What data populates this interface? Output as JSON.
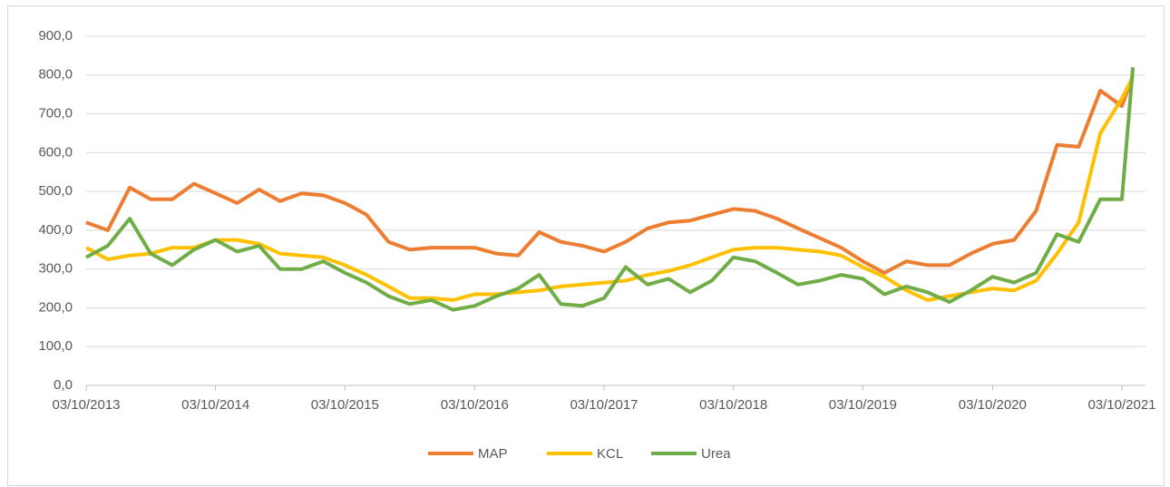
{
  "chart_data": {
    "type": "line",
    "x": [
      "03/10/2013",
      "03/12/2013",
      "03/02/2014",
      "03/04/2014",
      "03/06/2014",
      "03/08/2014",
      "03/10/2014",
      "03/12/2014",
      "03/02/2015",
      "03/04/2015",
      "03/06/2015",
      "03/08/2015",
      "03/10/2015",
      "03/12/2015",
      "03/02/2016",
      "03/04/2016",
      "03/06/2016",
      "03/08/2016",
      "03/10/2016",
      "03/12/2016",
      "03/02/2017",
      "03/04/2017",
      "03/06/2017",
      "03/08/2017",
      "03/10/2017",
      "03/12/2017",
      "03/02/2018",
      "03/04/2018",
      "03/06/2018",
      "03/08/2018",
      "03/10/2018",
      "03/12/2018",
      "03/02/2019",
      "03/04/2019",
      "03/06/2019",
      "03/08/2019",
      "03/10/2019",
      "03/12/2019",
      "03/02/2020",
      "03/04/2020",
      "03/06/2020",
      "03/08/2020",
      "03/10/2020",
      "03/12/2020",
      "03/02/2021",
      "03/04/2021",
      "03/06/2021",
      "03/08/2021",
      "03/10/2021",
      "03/11/2021"
    ],
    "series": [
      {
        "name": "MAP",
        "color": "#ed7d31",
        "values": [
          420,
          400,
          510,
          480,
          480,
          520,
          495,
          470,
          505,
          475,
          495,
          490,
          470,
          440,
          370,
          350,
          355,
          355,
          355,
          340,
          335,
          395,
          370,
          360,
          345,
          370,
          405,
          420,
          425,
          440,
          455,
          450,
          430,
          405,
          380,
          355,
          320,
          290,
          320,
          310,
          310,
          340,
          365,
          375,
          450,
          620,
          615,
          760,
          720,
          800
        ]
      },
      {
        "name": "KCL",
        "color": "#ffc000",
        "values": [
          355,
          325,
          335,
          340,
          355,
          355,
          375,
          375,
          365,
          340,
          335,
          330,
          310,
          285,
          255,
          225,
          225,
          220,
          235,
          235,
          240,
          245,
          255,
          260,
          265,
          270,
          285,
          295,
          310,
          330,
          350,
          355,
          355,
          350,
          345,
          335,
          305,
          280,
          245,
          220,
          230,
          240,
          250,
          245,
          270,
          340,
          420,
          650,
          740,
          795
        ]
      },
      {
        "name": "Urea",
        "color": "#70ad47",
        "values": [
          330,
          360,
          430,
          340,
          310,
          350,
          375,
          345,
          360,
          300,
          300,
          320,
          290,
          265,
          230,
          210,
          220,
          195,
          205,
          230,
          250,
          285,
          210,
          205,
          225,
          305,
          260,
          275,
          240,
          270,
          330,
          320,
          290,
          260,
          270,
          285,
          275,
          235,
          255,
          240,
          215,
          245,
          280,
          265,
          290,
          390,
          370,
          480,
          480,
          820
        ]
      }
    ],
    "xlim": [
      "03/10/2013",
      "03/11/2021"
    ],
    "xticks": [
      "03/10/2013",
      "03/10/2014",
      "03/10/2015",
      "03/10/2016",
      "03/10/2017",
      "03/10/2018",
      "03/10/2019",
      "03/10/2020",
      "03/10/2021"
    ],
    "ylim": [
      0,
      900
    ],
    "yticks": [
      {
        "value": 0,
        "label": "0,0"
      },
      {
        "value": 100,
        "label": "100,0"
      },
      {
        "value": 200,
        "label": "200,0"
      },
      {
        "value": 300,
        "label": "300,0"
      },
      {
        "value": 400,
        "label": "400,0"
      },
      {
        "value": 500,
        "label": "500,0"
      },
      {
        "value": 600,
        "label": "600,0"
      },
      {
        "value": 700,
        "label": "700,0"
      },
      {
        "value": 800,
        "label": "800,0"
      },
      {
        "value": 900,
        "label": "900,0"
      }
    ],
    "grid": true,
    "legend": "bottom"
  }
}
